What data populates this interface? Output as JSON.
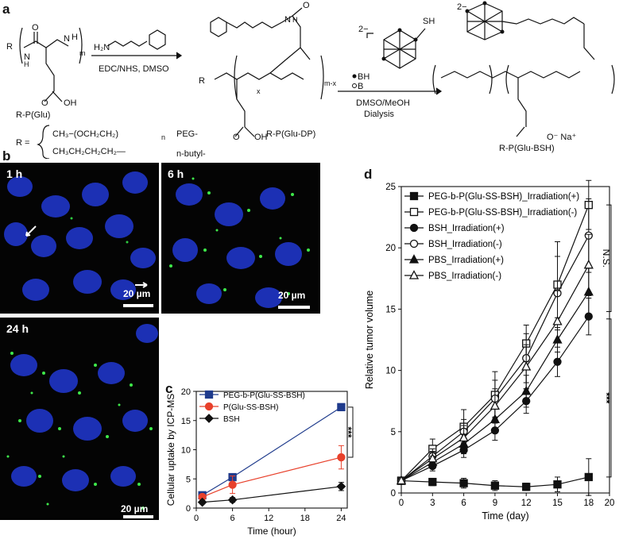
{
  "panels": {
    "a": "a",
    "b": "b",
    "c": "c",
    "d": "d"
  },
  "scheme": {
    "reactant_label": "R-P(Glu)",
    "reagent_1_top": "H₂N",
    "reagent_1_bottom": "EDC/NHS, DMSO",
    "intermediate_label": "R-P(Glu-DP)",
    "reagent_2_bottom_1": "DMSO/MeOH",
    "reagent_2_bottom_2": "Dialysis",
    "product_label": "R-P(Glu-BSH)",
    "r_group_peg": "CH₃−(OCH₂CH₂)",
    "r_group_peg_name": "PEG-",
    "r_group_butyl": "CH₃CH₂CH₂CH₂—",
    "r_group_butyl_name": "n-butyl-",
    "r_eq": "R =",
    "legend_bh": "BH",
    "legend_b": "B",
    "charge": "2−",
    "sh": "SH",
    "ona": "O⁻ Na⁺"
  },
  "microscopy": [
    {
      "time": "1 h",
      "scale": "20 µm"
    },
    {
      "time": "6 h",
      "scale": "20 µm"
    },
    {
      "time": "24 h",
      "scale": "20 µm"
    }
  ],
  "chart_data": [
    {
      "panel": "c",
      "type": "line",
      "xlabel": "Time (hour)",
      "ylabel": "Cellular uptake by ICP-MS",
      "xlim": [
        0,
        25
      ],
      "ylim": [
        0,
        20
      ],
      "xticks": [
        0,
        6,
        12,
        18,
        24
      ],
      "yticks": [
        0,
        5,
        10,
        15,
        20
      ],
      "legend_position": "top-left",
      "significance": "***",
      "series": [
        {
          "name": "PEG-b-P(Glu-SS-BSH)",
          "color": "#1f3b8c",
          "marker": "square",
          "x": [
            1,
            6,
            24
          ],
          "y": [
            2.2,
            5.3,
            17.3
          ],
          "err": [
            0.3,
            0.4,
            0.5
          ]
        },
        {
          "name": "P(Glu-SS-BSH)",
          "color": "#e8402b",
          "marker": "circle",
          "x": [
            1,
            6,
            24
          ],
          "y": [
            1.9,
            4.0,
            8.7
          ],
          "err": [
            0.3,
            1.5,
            2.0
          ]
        },
        {
          "name": "BSH",
          "color": "#111111",
          "marker": "diamond",
          "x": [
            1,
            6,
            24
          ],
          "y": [
            1.0,
            1.4,
            3.7
          ],
          "err": [
            0.3,
            0.4,
            0.7
          ]
        }
      ]
    },
    {
      "panel": "d",
      "type": "line",
      "xlabel": "Time (day)",
      "ylabel": "Relative tumor volume",
      "xlim": [
        0,
        20
      ],
      "ylim": [
        0,
        25
      ],
      "xticks": [
        0,
        3,
        6,
        9,
        12,
        15,
        18,
        20
      ],
      "yticks": [
        0,
        5,
        10,
        15,
        20,
        25
      ],
      "legend_position": "top-left",
      "significance_upper": "N.S.",
      "significance_lower": "***",
      "series": [
        {
          "name": "PEG-b-P(Glu-SS-BSH)_Irradiation(+)",
          "marker": "filled-square",
          "x": [
            0,
            3,
            6,
            9,
            12,
            15,
            18
          ],
          "y": [
            1.0,
            0.9,
            0.8,
            0.6,
            0.5,
            0.7,
            1.3
          ],
          "err": [
            0.1,
            0.3,
            0.4,
            0.4,
            0.3,
            0.6,
            1.5
          ]
        },
        {
          "name": "PEG-b-P(Glu-SS-BSH)_Irradiation(-)",
          "marker": "open-square",
          "x": [
            0,
            3,
            6,
            9,
            12,
            15,
            18
          ],
          "y": [
            1.0,
            3.6,
            5.4,
            8.0,
            12.2,
            17.0,
            23.5
          ],
          "err": [
            0.1,
            0.8,
            1.4,
            1.9,
            1.5,
            3.5,
            2.0
          ]
        },
        {
          "name": "BSH_Irradiation(+)",
          "marker": "filled-circle",
          "x": [
            0,
            3,
            6,
            9,
            12,
            15,
            18
          ],
          "y": [
            1.0,
            2.2,
            3.5,
            5.1,
            7.5,
            10.7,
            14.4
          ],
          "err": [
            0.1,
            0.4,
            0.6,
            0.8,
            1.0,
            1.2,
            1.5
          ]
        },
        {
          "name": "BSH_Irradiation(-)",
          "marker": "open-circle",
          "x": [
            0,
            3,
            6,
            9,
            12,
            15,
            18
          ],
          "y": [
            1.0,
            3.0,
            5.0,
            7.7,
            11.0,
            16.3,
            21.0
          ],
          "err": [
            0.1,
            0.6,
            1.0,
            1.5,
            2.0,
            3.0,
            3.0
          ]
        },
        {
          "name": "PBS_Irradiation(+)",
          "marker": "filled-triangle",
          "x": [
            0,
            3,
            6,
            9,
            12,
            15,
            18
          ],
          "y": [
            1.0,
            2.5,
            4.0,
            6.0,
            8.3,
            12.5,
            16.4
          ],
          "err": [
            0.1,
            0.5,
            0.8,
            1.0,
            1.3,
            1.8,
            2.0
          ]
        },
        {
          "name": "PBS_Irradiation(-)",
          "marker": "open-triangle",
          "x": [
            0,
            3,
            6,
            9,
            12,
            15,
            18
          ],
          "y": [
            1.0,
            2.8,
            4.5,
            7.1,
            10.3,
            14.0,
            18.6
          ],
          "err": [
            0.1,
            0.6,
            1.0,
            1.4,
            1.8,
            2.5,
            2.5
          ]
        }
      ]
    }
  ]
}
